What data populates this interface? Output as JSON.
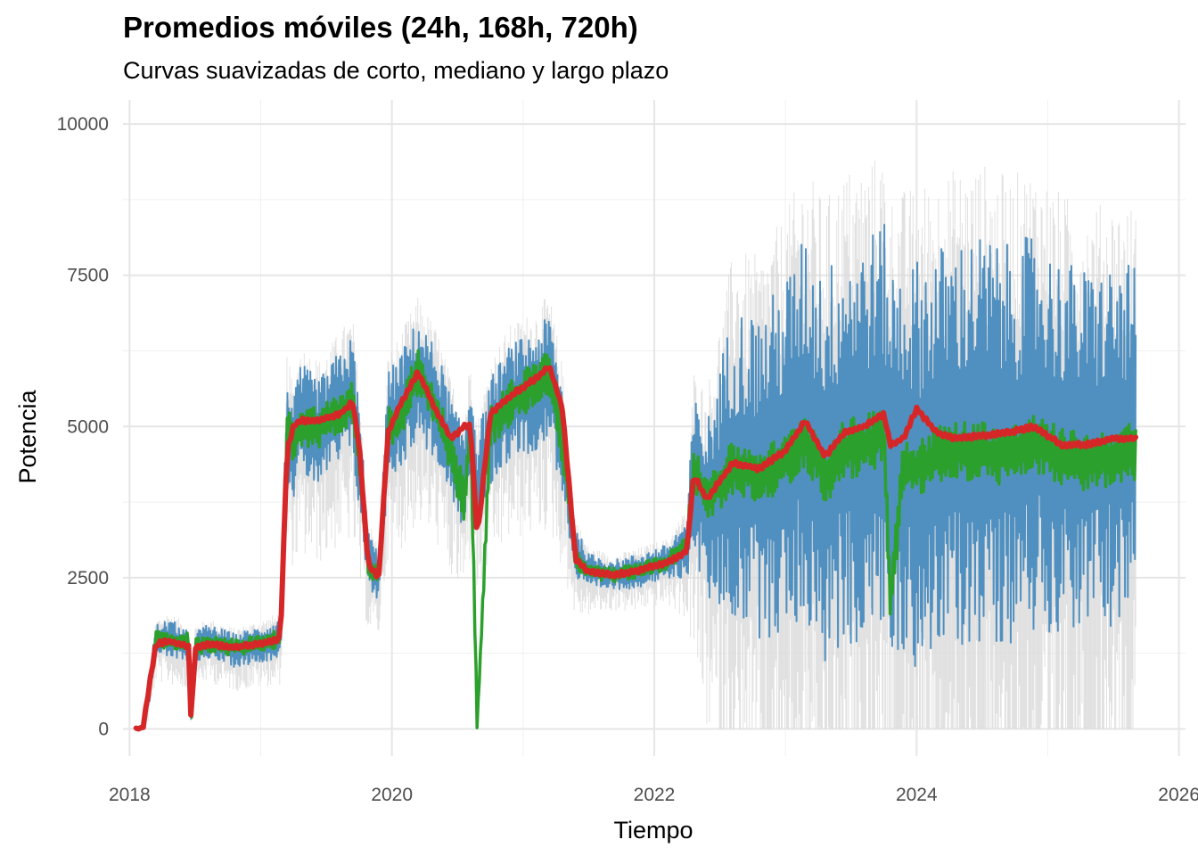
{
  "header": {
    "title": "Promedios móviles (24h, 168h, 720h)",
    "subtitle": "Curvas suavizadas de corto, mediano y largo plazo"
  },
  "chart_data": {
    "type": "line",
    "title": "Promedios móviles (24h, 168h, 720h)",
    "subtitle": "Curvas suavizadas de corto, mediano y largo plazo",
    "xlabel": "Tiempo",
    "ylabel": "Potencia",
    "xlim": [
      2017.95,
      2026.05
    ],
    "ylim": [
      -450,
      10400
    ],
    "x_ticks": [
      2018,
      2020,
      2022,
      2024,
      2026
    ],
    "x_tick_labels": [
      "2018",
      "2020",
      "2022",
      "2024",
      "2026"
    ],
    "y_ticks": [
      0,
      2500,
      5000,
      7500,
      10000
    ],
    "y_tick_labels": [
      "0",
      "2500",
      "5000",
      "7500",
      "10000"
    ],
    "grid": true,
    "legend": "none",
    "x": [
      2018.05,
      2018.1,
      2018.15,
      2018.2,
      2018.3,
      2018.4,
      2018.45,
      2018.47,
      2018.5,
      2018.6,
      2018.8,
      2019.0,
      2019.15,
      2019.2,
      2019.25,
      2019.3,
      2019.45,
      2019.6,
      2019.7,
      2019.75,
      2019.82,
      2019.9,
      2019.97,
      2020.05,
      2020.2,
      2020.35,
      2020.45,
      2020.55,
      2020.6,
      2020.65,
      2020.75,
      2020.9,
      2021.1,
      2021.2,
      2021.3,
      2021.4,
      2021.5,
      2021.7,
      2021.85,
      2022.0,
      2022.1,
      2022.25,
      2022.3,
      2022.4,
      2022.6,
      2022.8,
      2023.0,
      2023.15,
      2023.3,
      2023.45,
      2023.6,
      2023.75,
      2023.8,
      2023.9,
      2024.0,
      2024.15,
      2024.3,
      2024.5,
      2024.7,
      2024.9,
      2025.1,
      2025.3,
      2025.5,
      2025.67
    ],
    "series": [
      {
        "values": [
          0,
          0,
          600,
          1450,
          1500,
          1400,
          1300,
          200,
          1350,
          1450,
          1300,
          1400,
          1500,
          5000,
          4600,
          5100,
          4900,
          5300,
          5500,
          4500,
          2800,
          2500,
          5000,
          5200,
          5800,
          5300,
          4600,
          4100,
          5000,
          4000,
          4900,
          5400,
          5600,
          5800,
          4800,
          2900,
          2600,
          2550,
          2600,
          2700,
          2750,
          3000,
          4200,
          3600,
          4400,
          4200,
          4500,
          5000,
          4300,
          4700,
          4800,
          5000,
          4400,
          4500,
          4400,
          4600,
          4700,
          4800,
          4700,
          4900,
          4700,
          4600,
          4700,
          4750
        ],
        "color": "#5090c0",
        "spread": [
          0,
          0,
          200,
          280,
          320,
          300,
          300,
          100,
          280,
          280,
          280,
          300,
          320,
          900,
          800,
          950,
          900,
          950,
          1000,
          900,
          500,
          400,
          900,
          950,
          1000,
          950,
          900,
          800,
          900,
          800,
          900,
          950,
          1000,
          1050,
          900,
          450,
          300,
          250,
          280,
          280,
          300,
          500,
          1300,
          1500,
          2600,
          2700,
          3000,
          3200,
          3300,
          3400,
          3400,
          3400,
          3300,
          3300,
          3400,
          3400,
          3400,
          3400,
          3300,
          3300,
          3100,
          3000,
          3000,
          2900
        ]
      },
      {
        "values": [
          0,
          0,
          700,
          1500,
          1450,
          1400,
          1450,
          0,
          1350,
          1400,
          1350,
          1400,
          1500,
          5000,
          4700,
          5000,
          5000,
          5200,
          5400,
          4400,
          2700,
          2500,
          5000,
          5100,
          5900,
          5200,
          4500,
          3800,
          5000,
          0,
          5000,
          5400,
          5700,
          5900,
          4700,
          2800,
          2600,
          2550,
          2600,
          2700,
          2750,
          3100,
          4300,
          3800,
          4300,
          4200,
          4400,
          4800,
          4200,
          4600,
          4700,
          4900,
          2100,
          4400,
          4300,
          4500,
          4600,
          4600,
          4500,
          4700,
          4500,
          4400,
          4500,
          4600
        ],
        "color": "#2ca02c",
        "spread": [
          0,
          0,
          100,
          150,
          140,
          140,
          150,
          50,
          140,
          140,
          140,
          140,
          150,
          350,
          350,
          350,
          350,
          350,
          380,
          350,
          200,
          150,
          350,
          350,
          380,
          350,
          350,
          350,
          350,
          100,
          350,
          380,
          400,
          420,
          350,
          150,
          120,
          120,
          120,
          120,
          130,
          200,
          350,
          400,
          450,
          450,
          450,
          480,
          480,
          500,
          500,
          500,
          400,
          480,
          500,
          500,
          500,
          500,
          500,
          500,
          480,
          480,
          480,
          480
        ]
      },
      {
        "values": [
          0,
          0,
          700,
          1400,
          1450,
          1400,
          1350,
          100,
          1350,
          1400,
          1350,
          1400,
          1500,
          4600,
          5000,
          5100,
          5100,
          5200,
          5400,
          4700,
          2700,
          2500,
          4900,
          5300,
          5900,
          5200,
          4800,
          5000,
          5000,
          3150,
          5200,
          5500,
          5800,
          6000,
          5300,
          2800,
          2600,
          2550,
          2600,
          2700,
          2750,
          2950,
          4200,
          3800,
          4400,
          4300,
          4600,
          5100,
          4500,
          4900,
          5000,
          5200,
          4700,
          4800,
          5300,
          4900,
          4800,
          4850,
          4900,
          5000,
          4700,
          4700,
          4800,
          4800
        ],
        "color": "#d62728"
      }
    ]
  }
}
